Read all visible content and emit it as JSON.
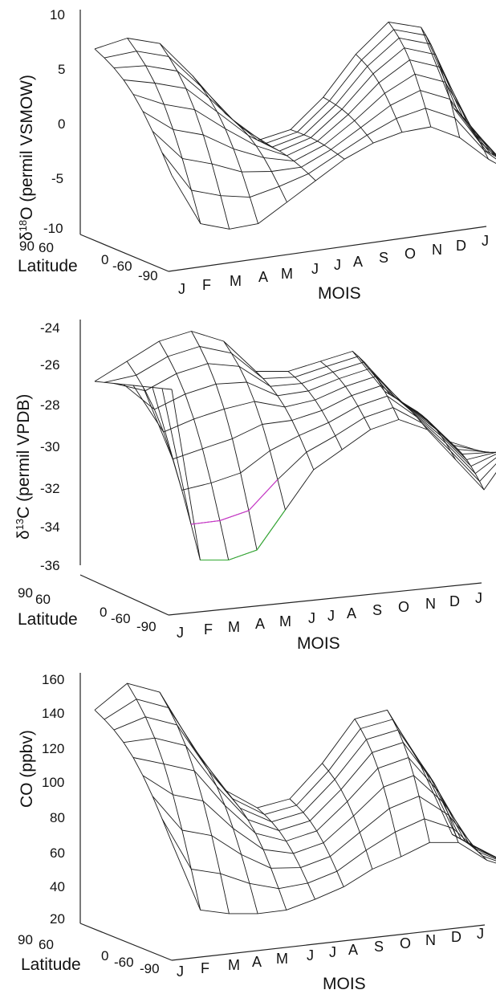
{
  "chart_data": [
    {
      "type": "surface",
      "zlabel_main": "δ",
      "zlabel_sup": "18",
      "zlabel_rest": "O (permil VSMOW)",
      "z_ticks": [
        "10",
        "5",
        "0",
        "-5",
        "-10"
      ],
      "z_tick_values": [
        10,
        5,
        0,
        -5,
        -10
      ],
      "zlim": [
        -10,
        10
      ],
      "latitude_label": "Latitude",
      "latitude_ticks": [
        "90",
        "60",
        "0",
        "-60",
        "-90"
      ],
      "xlabel": "MOIS",
      "months": [
        "J",
        "F",
        "M",
        "A",
        "M",
        "J",
        "J",
        "A",
        "S",
        "O",
        "N",
        "D",
        "J"
      ],
      "back_profile": [
        6.5,
        7.5,
        7.0,
        4.0,
        0.5,
        -2.0,
        -1.0,
        2.0,
        6.0,
        9.0,
        8.5,
        1.0,
        -3.0
      ],
      "front_profile": [
        -4.5,
        -9.0,
        -9.5,
        -9.0,
        -7.0,
        -5.0,
        -3.0,
        -1.5,
        -0.5,
        0.0,
        -1.0,
        -3.0,
        -4.5
      ]
    },
    {
      "type": "surface",
      "zlabel_main": "δ",
      "zlabel_sup": "13",
      "zlabel_rest": "C (permil VPDB)",
      "z_ticks": [
        "-24",
        "-26",
        "-28",
        "-30",
        "-32",
        "-34",
        "-36"
      ],
      "z_tick_values": [
        -24,
        -26,
        -28,
        -30,
        -32,
        -34,
        -36
      ],
      "zlim": [
        -36,
        -24
      ],
      "latitude_label": "Latitude",
      "latitude_ticks": [
        "90",
        "60",
        "0",
        "-60",
        "-90"
      ],
      "xlabel": "MOIS",
      "months": [
        "J",
        "F",
        "M",
        "A",
        "M",
        "J",
        "J",
        "A",
        "S",
        "O",
        "N",
        "D",
        "J"
      ],
      "back_profile": [
        -27.0,
        -26.0,
        -25.0,
        -24.5,
        -25.0,
        -26.5,
        -26.5,
        -26.0,
        -25.5,
        -27.5,
        -28.5,
        -30.0,
        -30.5
      ],
      "front_profile": [
        -27.0,
        -35.5,
        -35.5,
        -35.0,
        -33.0,
        -31.0,
        -30.0,
        -29.0,
        -28.5,
        -29.0,
        -30.5,
        -32.0,
        -30.0
      ]
    },
    {
      "type": "surface",
      "zlabel_main": "CO (ppbv)",
      "zlabel_sup": "",
      "zlabel_rest": "",
      "z_ticks": [
        "160",
        "140",
        "120",
        "100",
        "80",
        "60",
        "40",
        "20"
      ],
      "z_tick_values": [
        160,
        140,
        120,
        100,
        80,
        60,
        40,
        20
      ],
      "zlim": [
        20,
        160
      ],
      "latitude_label": "Latitude",
      "latitude_ticks": [
        "90",
        "60",
        "0",
        "-60",
        "-90"
      ],
      "xlabel": "MOIS",
      "months": [
        "J",
        "F",
        "M",
        "A",
        "M",
        "J",
        "J",
        "A",
        "S",
        "O",
        "N",
        "D",
        "J"
      ],
      "back_profile": [
        140,
        155,
        150,
        120,
        95,
        85,
        90,
        110,
        135,
        140,
        110,
        70,
        60
      ],
      "front_profile": [
        70,
        32,
        30,
        30,
        32,
        38,
        45,
        55,
        62,
        70,
        70,
        60,
        55
      ]
    }
  ]
}
